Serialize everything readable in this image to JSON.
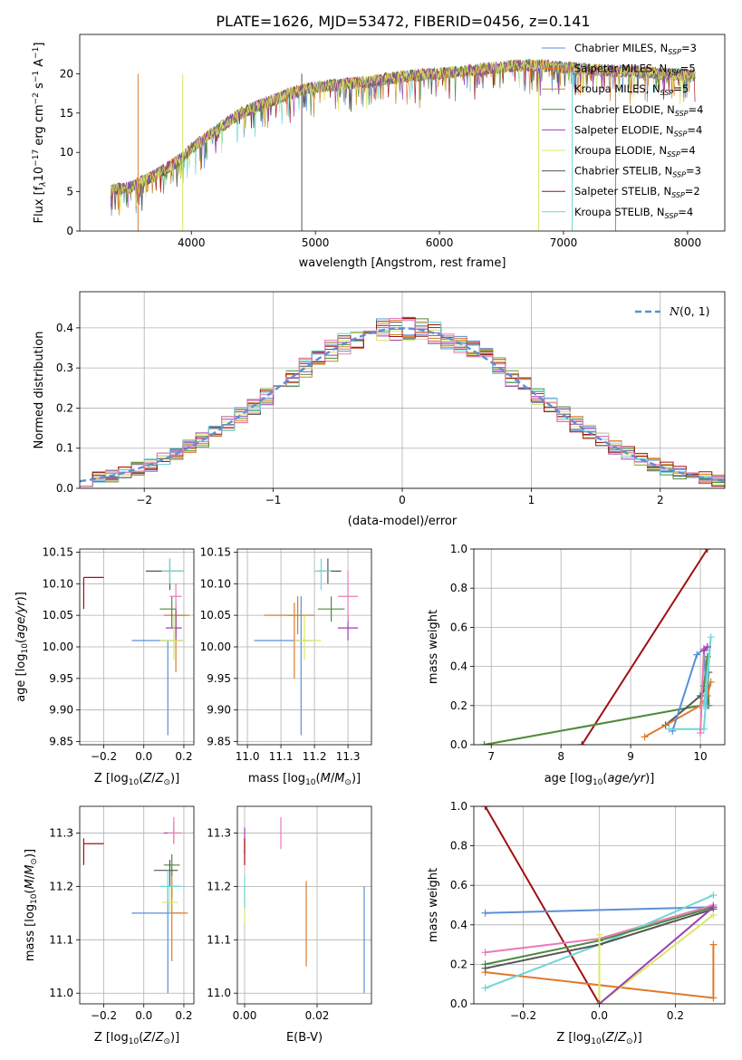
{
  "figure_title": "PLATE=1626, MJD=53472, FIBERID=0456, z=0.141",
  "colors": {
    "chabrier_miles": "#5b8fd6",
    "salpeter_miles": "#e07a2c",
    "kroupa_miles": "#c9851f",
    "chabrier_elodie": "#4c8a3f",
    "salpeter_elodie": "#9b3fb5",
    "kroupa_elodie": "#d8e866",
    "chabrier_stelib": "#555555",
    "salpeter_stelib": "#a01010",
    "kroupa_stelib": "#6fd6d6",
    "pink": "#e87bb7",
    "gaussian": "#5b8fd6",
    "grid": "#b0b0b0"
  },
  "chart_data": [
    {
      "id": "spectrum",
      "type": "line",
      "xlabel": "wavelength [Angstrom, rest frame]",
      "ylabel": "Flux [f",
      "ylabel_parts": [
        "Flux [f",
        "λ",
        "10",
        "−17",
        " erg cm",
        "−2",
        " s",
        "−1",
        " A",
        "−1",
        "]"
      ],
      "xlim": [
        3100,
        8300
      ],
      "ylim": [
        0,
        25
      ],
      "xticks": [
        4000,
        5000,
        6000,
        7000,
        8000
      ],
      "yticks": [
        0,
        5,
        10,
        15,
        20
      ],
      "grid": false,
      "legend_position": "top-right",
      "legend": [
        {
          "label": "Chabrier MILES, N",
          "n": "3",
          "color": "#5b8fd6"
        },
        {
          "label": "Salpeter MILES, N",
          "n": "5",
          "color": "#e07a2c"
        },
        {
          "label": "Kroupa MILES, N",
          "n": "5",
          "color": "#c9851f"
        },
        {
          "label": "Chabrier ELODIE, N",
          "n": "4",
          "color": "#4c8a3f"
        },
        {
          "label": "Salpeter ELODIE, N",
          "n": "4",
          "color": "#9b3fb5"
        },
        {
          "label": "Kroupa ELODIE, N",
          "n": "4",
          "color": "#d8e866"
        },
        {
          "label": "Chabrier STELIB, N",
          "n": "3",
          "color": "#555555"
        },
        {
          "label": "Salpeter STELIB, N",
          "n": "2",
          "color": "#a01010"
        },
        {
          "label": "Kroupa STELIB, N",
          "n": "4",
          "color": "#6fd6d6"
        }
      ],
      "legend_subscript": "SSP",
      "continuum": {
        "x": [
          3350,
          3500,
          3700,
          3900,
          4000,
          4200,
          4400,
          4600,
          4800,
          5000,
          5200,
          5400,
          5600,
          5800,
          6000,
          6200,
          6400,
          6600,
          6800,
          7000,
          7200,
          7400,
          7600,
          7800,
          8050
        ],
        "y": [
          5.2,
          5.5,
          7.0,
          9.0,
          10.5,
          12.8,
          15.0,
          16.3,
          17.5,
          18.3,
          18.6,
          19.0,
          19.4,
          19.8,
          20.0,
          20.4,
          20.7,
          21.0,
          21.1,
          20.8,
          20.5,
          20.4,
          20.3,
          20.0,
          19.8
        ]
      },
      "drops": [
        {
          "x": 4890,
          "color": "#555555"
        },
        {
          "x": 6800,
          "color": "#d8e866"
        },
        {
          "x": 7070,
          "color": "#6fd6d6"
        },
        {
          "x": 7420,
          "color": "#e07a2c"
        },
        {
          "x": 3570,
          "color": "#e07a2c"
        },
        {
          "x": 3930,
          "color": "#d8e866"
        }
      ]
    },
    {
      "id": "residuals",
      "type": "histogram",
      "xlabel": "(data-model)/error",
      "ylabel": "Normed distribution",
      "xlim": [
        -2.5,
        2.5
      ],
      "ylim": [
        0,
        0.49
      ],
      "xticks": [
        -2,
        -1,
        0,
        1,
        2
      ],
      "yticks": [
        0.0,
        0.1,
        0.2,
        0.3,
        0.4
      ],
      "grid": true,
      "legend_position": "top-right",
      "legend_label": "N(0, 1)",
      "bin_width": 0.1
    },
    {
      "id": "age_vs_z",
      "type": "scatter",
      "xlabel": "Z [log",
      "xlabel_unit": "10",
      "xlabel_rest": "(Z/Z",
      "ylabel": "age  [log10(age/yr)]",
      "xlim": [
        -0.32,
        0.25
      ],
      "ylim": [
        9.845,
        10.155
      ],
      "xticks": [
        -0.2,
        0.0,
        0.2
      ],
      "yticks": [
        9.85,
        9.9,
        9.95,
        10.0,
        10.05,
        10.1,
        10.15
      ],
      "grid": true,
      "points": [
        {
          "x": 0.12,
          "y": 10.01,
          "xe": [
            0.18,
            0.07
          ],
          "ye": [
            0.15,
            0.0
          ],
          "color": "#5b8fd6"
        },
        {
          "x": 0.16,
          "y": 10.05,
          "xe": [
            0.06,
            0.07
          ],
          "ye": [
            0.09,
            0.0
          ],
          "color": "#e07a2c"
        },
        {
          "x": 0.16,
          "y": 10.05,
          "xe": [
            0.03,
            0.05
          ],
          "ye": [
            0.03,
            0.02
          ],
          "color": "#c9851f"
        },
        {
          "x": 0.14,
          "y": 10.06,
          "xe": [
            0.06,
            0.02
          ],
          "ye": [
            0.03,
            0.02
          ],
          "color": "#4c8a3f"
        },
        {
          "x": 0.16,
          "y": 10.03,
          "xe": [
            0.05,
            0.03
          ],
          "ye": [
            0.02,
            0.03
          ],
          "color": "#9b3fb5"
        },
        {
          "x": 0.15,
          "y": 10.01,
          "xe": [
            0.07,
            0.05
          ],
          "ye": [
            0.03,
            0.04
          ],
          "color": "#d8e866"
        },
        {
          "x": 0.13,
          "y": 10.12,
          "xe": [
            0.12,
            0.07
          ],
          "ye": [
            0.03,
            0.02
          ],
          "color": "#555555"
        },
        {
          "x": -0.3,
          "y": 10.11,
          "xe": [
            0.0,
            0.1
          ],
          "ye": [
            0.05,
            0.0
          ],
          "color": "#a01010"
        },
        {
          "x": 0.13,
          "y": 10.12,
          "xe": [
            0.04,
            0.07
          ],
          "ye": [
            0.02,
            0.02
          ],
          "color": "#6fd6d6"
        },
        {
          "x": 0.16,
          "y": 10.08,
          "xe": [
            0.03,
            0.03
          ],
          "ye": [
            0.02,
            0.02
          ],
          "color": "#e87bb7"
        }
      ]
    },
    {
      "id": "age_vs_mass",
      "type": "scatter",
      "xlabel": "mass [log",
      "ylabel": "",
      "xlim": [
        10.97,
        11.37
      ],
      "ylim": [
        9.845,
        10.155
      ],
      "xticks": [
        11.0,
        11.1,
        11.2,
        11.3
      ],
      "yticks": [
        9.85,
        9.9,
        9.95,
        10.0,
        10.05,
        10.1,
        10.15
      ],
      "grid": true,
      "points": [
        {
          "x": 11.16,
          "y": 10.01,
          "xe": [
            0.14,
            0.03
          ],
          "ye": [
            0.15,
            0.07
          ],
          "color": "#5b8fd6"
        },
        {
          "x": 11.14,
          "y": 10.05,
          "xe": [
            0.09,
            0.06
          ],
          "ye": [
            0.1,
            0.02
          ],
          "color": "#e07a2c"
        },
        {
          "x": 11.15,
          "y": 10.05,
          "xe": [
            0.03,
            0.02
          ],
          "ye": [
            0.03,
            0.03
          ],
          "color": "#c9851f"
        },
        {
          "x": 11.25,
          "y": 10.06,
          "xe": [
            0.04,
            0.04
          ],
          "ye": [
            0.02,
            0.02
          ],
          "color": "#4c8a3f"
        },
        {
          "x": 11.3,
          "y": 10.03,
          "xe": [
            0.03,
            0.03
          ],
          "ye": [
            0.02,
            0.02
          ],
          "color": "#9b3fb5"
        },
        {
          "x": 11.17,
          "y": 10.01,
          "xe": [
            0.03,
            0.05
          ],
          "ye": [
            0.03,
            0.04
          ],
          "color": "#d8e866"
        },
        {
          "x": 11.24,
          "y": 10.12,
          "xe": [
            0.03,
            0.04
          ],
          "ye": [
            0.02,
            0.02
          ],
          "color": "#555555"
        },
        {
          "x": 11.22,
          "y": 10.12,
          "xe": [
            0.02,
            0.03
          ],
          "ye": [
            0.03,
            0.02
          ],
          "color": "#6fd6d6"
        },
        {
          "x": 11.3,
          "y": 10.08,
          "xe": [
            0.03,
            0.03
          ],
          "ye": [
            0.04,
            0.04
          ],
          "color": "#e87bb7"
        }
      ]
    },
    {
      "id": "mw_vs_age",
      "type": "line",
      "xlabel": "age  [log",
      "ylabel": "mass weight",
      "xlim": [
        6.75,
        10.35
      ],
      "ylim": [
        0,
        1
      ],
      "xticks": [
        7,
        8,
        9,
        10
      ],
      "yticks": [
        0.0,
        0.2,
        0.4,
        0.6,
        0.8,
        1.0
      ],
      "grid": true,
      "series": [
        {
          "color": "#a01010",
          "x": [
            8.3,
            10.1
          ],
          "y": [
            0.0,
            1.0
          ]
        },
        {
          "color": "#d8e866",
          "x": [
            6.9,
            10.0,
            10.05,
            10.1
          ],
          "y": [
            0.0,
            0.2,
            0.4,
            0.45
          ]
        },
        {
          "color": "#4c8a3f",
          "x": [
            6.9,
            10.0,
            10.05,
            10.1,
            10.12
          ],
          "y": [
            0.0,
            0.2,
            0.3,
            0.45,
            0.2
          ]
        },
        {
          "color": "#555555",
          "x": [
            9.5,
            10.0,
            10.1,
            10.12
          ],
          "y": [
            0.1,
            0.25,
            0.3,
            0.37
          ]
        },
        {
          "color": "#e07a2c",
          "x": [
            9.2,
            10.0,
            10.1,
            10.15
          ],
          "y": [
            0.04,
            0.2,
            0.25,
            0.32
          ]
        },
        {
          "color": "#5b8fd6",
          "x": [
            9.6,
            9.95,
            10.05,
            10.1
          ],
          "y": [
            0.07,
            0.46,
            0.49,
            0.2
          ]
        },
        {
          "color": "#6fd6d6",
          "x": [
            9.55,
            10.05,
            10.15,
            10.05
          ],
          "y": [
            0.08,
            0.08,
            0.55,
            0.2
          ]
        },
        {
          "color": "#e87bb7",
          "x": [
            10.0,
            10.05,
            10.1
          ],
          "y": [
            0.06,
            0.49,
            0.5
          ]
        },
        {
          "color": "#9b3fb5",
          "x": [
            10.05,
            10.1
          ],
          "y": [
            0.48,
            0.5
          ]
        }
      ]
    },
    {
      "id": "mass_vs_z",
      "type": "scatter",
      "xlabel": "Z [log",
      "ylabel": "mass [log10(M/M⊙)]",
      "xlim": [
        -0.32,
        0.25
      ],
      "ylim": [
        10.98,
        11.35
      ],
      "xticks": [
        -0.2,
        0.0,
        0.2
      ],
      "yticks": [
        11.0,
        11.1,
        11.2,
        11.3
      ],
      "grid": true,
      "points": [
        {
          "x": 0.12,
          "y": 11.15,
          "xe": [
            0.18,
            0.07
          ],
          "ye": [
            0.15,
            0.05
          ],
          "color": "#5b8fd6"
        },
        {
          "x": 0.14,
          "y": 11.15,
          "xe": [
            0.0,
            0.08
          ],
          "ye": [
            0.09,
            0.05
          ],
          "color": "#e07a2c"
        },
        {
          "x": 0.14,
          "y": 11.2,
          "xe": [
            0.02,
            0.04
          ],
          "ye": [
            0.02,
            0.03
          ],
          "color": "#c9851f"
        },
        {
          "x": 0.14,
          "y": 11.24,
          "xe": [
            0.04,
            0.04
          ],
          "ye": [
            0.02,
            0.02
          ],
          "color": "#4c8a3f"
        },
        {
          "x": 0.15,
          "y": 11.3,
          "xe": [
            0.05,
            0.03
          ],
          "ye": [
            0.02,
            0.02
          ],
          "color": "#9b3fb5"
        },
        {
          "x": 0.13,
          "y": 11.17,
          "xe": [
            0.04,
            0.04
          ],
          "ye": [
            0.02,
            0.03
          ],
          "color": "#d8e866"
        },
        {
          "x": 0.13,
          "y": 11.23,
          "xe": [
            0.08,
            0.04
          ],
          "ye": [
            0.03,
            0.02
          ],
          "color": "#555555"
        },
        {
          "x": -0.3,
          "y": 11.28,
          "xe": [
            0.0,
            0.1
          ],
          "ye": [
            0.04,
            0.01
          ],
          "color": "#a01010"
        },
        {
          "x": 0.12,
          "y": 11.2,
          "xe": [
            0.04,
            0.07
          ],
          "ye": [
            0.03,
            0.03
          ],
          "color": "#6fd6d6"
        },
        {
          "x": 0.15,
          "y": 11.3,
          "xe": [
            0.03,
            0.04
          ],
          "ye": [
            0.02,
            0.03
          ],
          "color": "#e87bb7"
        }
      ]
    },
    {
      "id": "mass_vs_ebv",
      "type": "scatter",
      "xlabel": "E(B-V)",
      "ylabel": "",
      "xlim": [
        -0.002,
        0.035
      ],
      "ylim": [
        10.98,
        11.35
      ],
      "xticks": [
        0.0,
        0.02
      ],
      "yticks": [
        11.0,
        11.1,
        11.2,
        11.3
      ],
      "grid": true,
      "segments": [
        {
          "x": 0.033,
          "y1": 11.0,
          "y2": 11.2,
          "color": "#5b8fd6"
        },
        {
          "x": 0.017,
          "y1": 11.05,
          "y2": 11.21,
          "color": "#e07a2c"
        },
        {
          "x": 0.01,
          "y1": 11.27,
          "y2": 11.33,
          "color": "#e87bb7"
        },
        {
          "x": 0.0,
          "y1": 11.13,
          "y2": 11.2,
          "color": "#d8e866"
        },
        {
          "x": 0.0,
          "y1": 11.26,
          "y2": 11.31,
          "color": "#9b3fb5"
        },
        {
          "x": 0.0,
          "y1": 11.24,
          "y2": 11.29,
          "color": "#a01010"
        },
        {
          "x": 0.0,
          "y1": 11.16,
          "y2": 11.22,
          "color": "#6fd6d6"
        }
      ]
    },
    {
      "id": "mw_vs_z",
      "type": "line",
      "xlabel": "Z [log",
      "ylabel": "mass weight",
      "xlim": [
        -0.33,
        0.33
      ],
      "ylim": [
        0,
        1
      ],
      "xticks": [
        -0.2,
        0.0,
        0.2
      ],
      "yticks": [
        0.0,
        0.2,
        0.4,
        0.6,
        0.8,
        1.0
      ],
      "grid": true,
      "series": [
        {
          "color": "#a01010",
          "x": [
            -0.3,
            0.0
          ],
          "y": [
            1.0,
            0.0
          ]
        },
        {
          "color": "#5b8fd6",
          "x": [
            -0.3,
            0.3
          ],
          "y": [
            0.46,
            0.49
          ]
        },
        {
          "color": "#e07a2c",
          "x": [
            -0.3,
            0.3,
            0.3
          ],
          "y": [
            0.16,
            0.03,
            0.3
          ]
        },
        {
          "color": "#e87bb7",
          "x": [
            -0.3,
            0.0,
            0.3
          ],
          "y": [
            0.26,
            0.33,
            0.5
          ]
        },
        {
          "color": "#6fd6d6",
          "x": [
            -0.3,
            0.0,
            0.3
          ],
          "y": [
            0.08,
            0.3,
            0.55
          ]
        },
        {
          "color": "#4c8a3f",
          "x": [
            -0.3,
            0.0,
            0.3
          ],
          "y": [
            0.2,
            0.32,
            0.49
          ]
        },
        {
          "color": "#555555",
          "x": [
            -0.3,
            0.0,
            0.3
          ],
          "y": [
            0.18,
            0.3,
            0.48
          ]
        },
        {
          "color": "#d8e866",
          "x": [
            0.0,
            0.0,
            0.3
          ],
          "y": [
            0.35,
            0.0,
            0.45
          ]
        },
        {
          "color": "#9b3fb5",
          "x": [
            0.0,
            0.3
          ],
          "y": [
            0.0,
            0.49
          ]
        }
      ]
    }
  ]
}
